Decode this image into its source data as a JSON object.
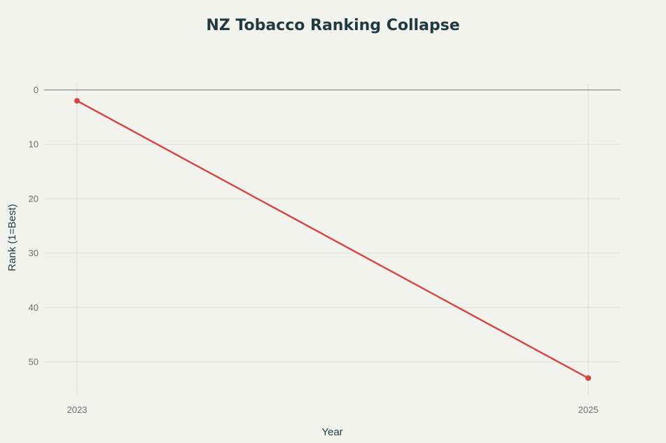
{
  "chart_data": {
    "type": "line",
    "title": "NZ Tobacco Ranking Collapse",
    "xlabel": "Year",
    "ylabel": "Rank (1=Best)",
    "x": [
      2023,
      2025
    ],
    "x_ticks": [
      "2023",
      "2025"
    ],
    "y_ticks": [
      0,
      10,
      20,
      30,
      40,
      50
    ],
    "ylim": [
      0,
      56
    ],
    "y_reversed": true,
    "grid": true,
    "series": [
      {
        "values": [
          2,
          53
        ],
        "color": "#d9443f"
      }
    ]
  }
}
